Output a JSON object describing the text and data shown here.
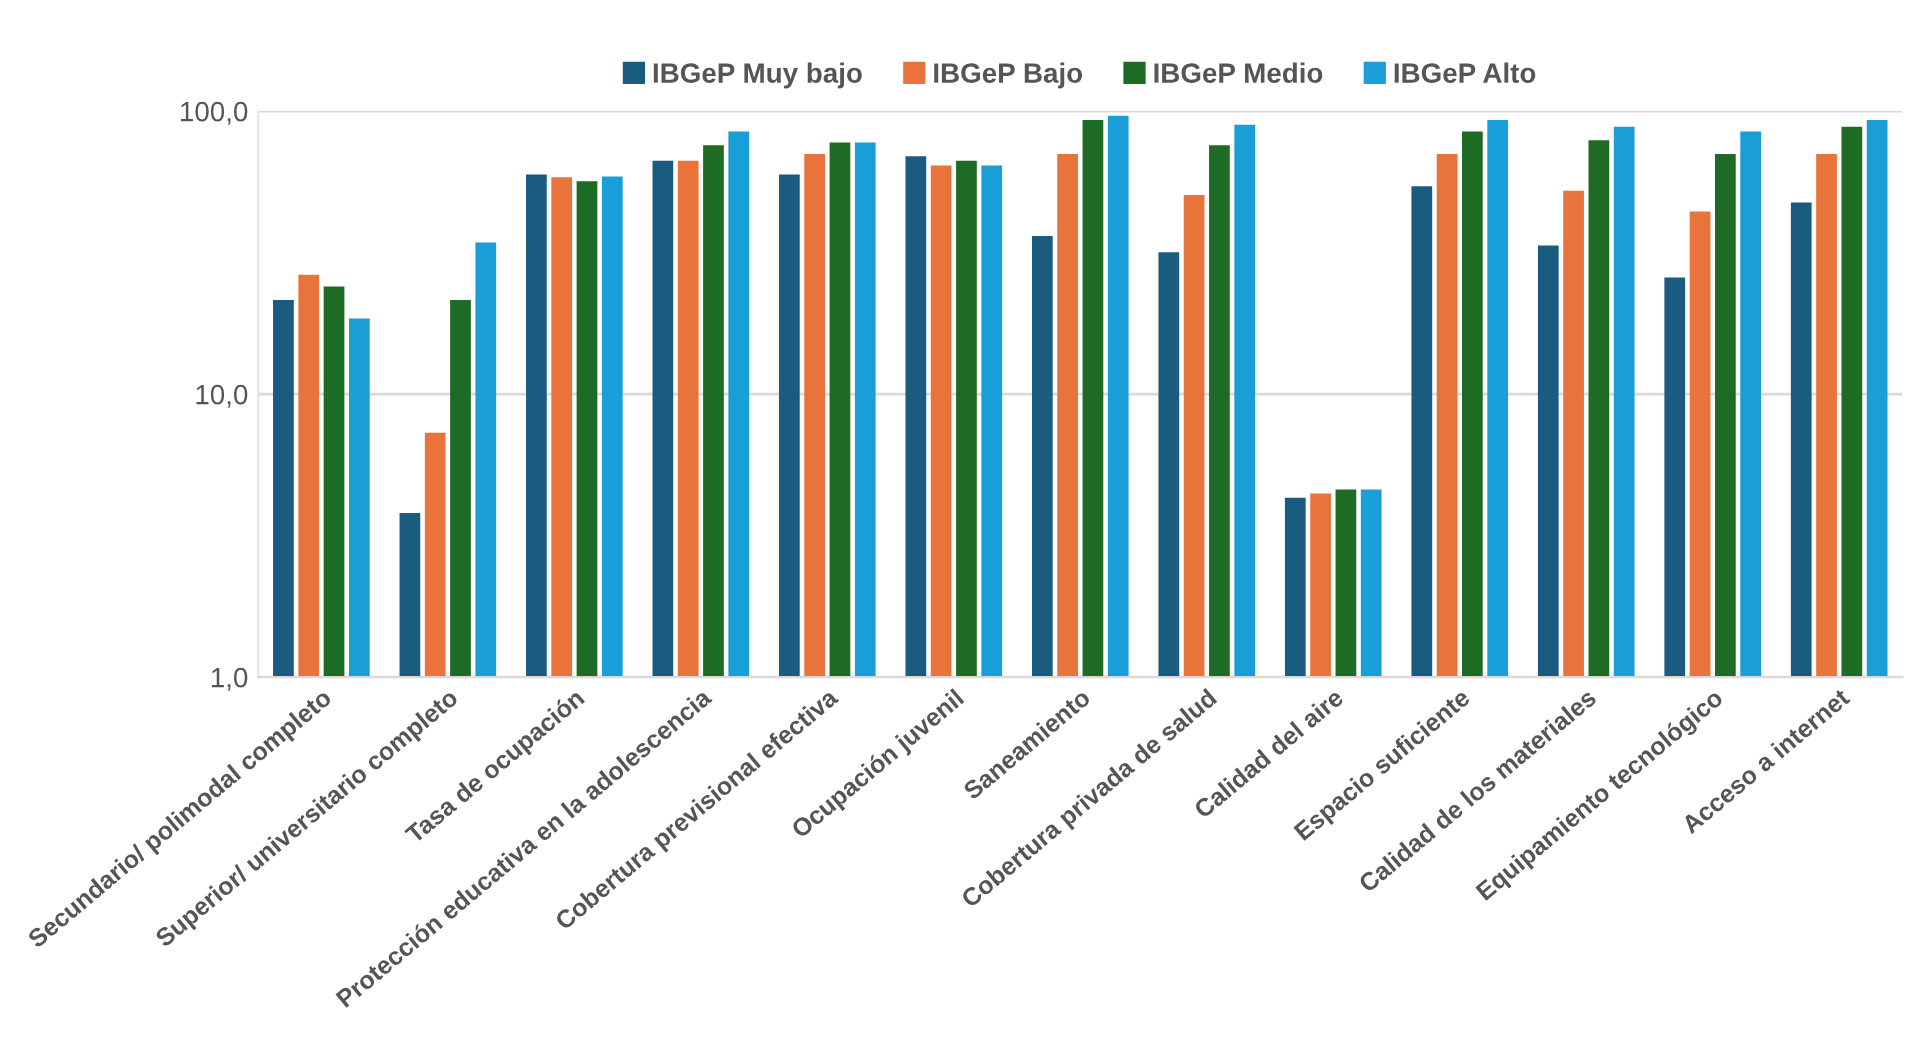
{
  "chart_data": {
    "type": "bar",
    "log": "y",
    "categories": [
      "Secundario/ polimodal completo",
      "Superior/ universitario completo",
      "Tasa de ocupación",
      "Protección educativa en la adolescencia",
      "Cobertura previsional efectiva",
      "Ocupación juvenil",
      "Saneamiento",
      "Cobertura privada de salud",
      "Calidad del aire",
      "Espacio suficiente",
      "Calidad de los materiales",
      "Equipamiento tecnológico",
      "Acceso a internet"
    ],
    "series": [
      {
        "name": "IBGeP Muy bajo",
        "color": "#1a5c80",
        "values": [
          21.5,
          3.8,
          59.7,
          66.7,
          59.7,
          69.3,
          36.2,
          31.7,
          4.3,
          54.3,
          33.5,
          25.8,
          47.5
        ]
      },
      {
        "name": "IBGeP Bajo",
        "color": "#e8743b",
        "values": [
          26.4,
          7.3,
          58.4,
          66.7,
          70.5,
          64.2,
          70.5,
          50.5,
          4.45,
          70.5,
          52.3,
          44.2,
          70.5
        ]
      },
      {
        "name": "IBGeP Medio",
        "color": "#1e6b25",
        "values": [
          24,
          21.5,
          56.5,
          75.8,
          77.5,
          66.7,
          93,
          75.8,
          4.6,
          84.7,
          78.8,
          70.5,
          88
        ]
      },
      {
        "name": "IBGeP Alto",
        "color": "#1a9ed8",
        "values": [
          18.5,
          34.3,
          58.7,
          84.7,
          77.5,
          64.2,
          96.2,
          89.5,
          4.6,
          93,
          88,
          84.7,
          93
        ]
      }
    ],
    "ylim": [
      1,
      100
    ],
    "yticks": [
      {
        "value": 1,
        "label": "1,0"
      },
      {
        "value": 10,
        "label": "10,0"
      },
      {
        "value": 100,
        "label": "100,0"
      }
    ],
    "grid": "y",
    "legend": "top"
  }
}
